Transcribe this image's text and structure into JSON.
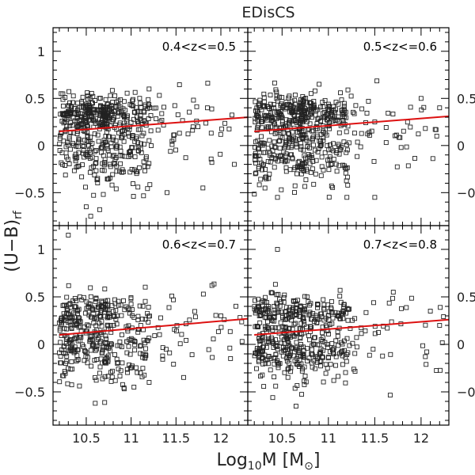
{
  "chart_data": {
    "type": "scatter",
    "title": "EDisCS",
    "xlabel": {
      "prefix": "Log",
      "sub": "10",
      "main": "M  [M",
      "sym": "⊙",
      "suffix": "]"
    },
    "ylabel": {
      "main": "(U−B)",
      "sub": "rf"
    },
    "xlim": [
      10.13,
      12.3
    ],
    "ylim": [
      -0.85,
      1.25
    ],
    "x_ticks": [
      10.5,
      11,
      11.5,
      12
    ],
    "x_tick_labels": [
      "10.5",
      "11",
      "11.5",
      "12"
    ],
    "y_ticks": [
      -0.5,
      0,
      0.5,
      1
    ],
    "y_tick_labels": [
      "−0.5",
      "0",
      "0.5",
      "1"
    ],
    "right_tick_labels_visible": [
      "0.5",
      "0",
      "−0."
    ],
    "marker": "open-square",
    "fit_color": "#dd1111",
    "panels": [
      {
        "label": "0.4<z<=0.5",
        "n_points": 560,
        "fit": {
          "x0": 10.2,
          "y0": 0.15,
          "x1": 12.3,
          "y1": 0.3
        },
        "sample_points": [
          [
            10.22,
            0.55
          ],
          [
            10.5,
            -0.65
          ],
          [
            10.55,
            -0.75
          ],
          [
            10.65,
            -0.68
          ],
          [
            11.2,
            0.6
          ],
          [
            11.85,
            0.4
          ],
          [
            11.4,
            -0.5
          ],
          [
            11.8,
            -0.45
          ],
          [
            12.15,
            -0.2
          ]
        ]
      },
      {
        "label": "0.5<z<=0.6",
        "n_points": 600,
        "fit": {
          "x0": 10.2,
          "y0": 0.15,
          "x1": 12.3,
          "y1": 0.31
        },
        "sample_points": [
          [
            10.9,
            0.65
          ],
          [
            10.45,
            -0.55
          ],
          [
            11.2,
            -0.55
          ],
          [
            11.5,
            -0.55
          ],
          [
            12.0,
            0.5
          ],
          [
            12.2,
            0.4
          ]
        ]
      },
      {
        "label": "0.6<z<=0.7",
        "n_points": 430,
        "fit": {
          "x0": 10.2,
          "y0": 0.1,
          "x1": 12.3,
          "y1": 0.27
        },
        "sample_points": [
          [
            10.3,
            1.15
          ],
          [
            10.6,
            -0.62
          ],
          [
            11.9,
            0.62
          ],
          [
            12.0,
            0.3
          ]
        ]
      },
      {
        "label": "0.7<z<=0.8",
        "n_points": 520,
        "fit": {
          "x0": 10.2,
          "y0": 0.1,
          "x1": 12.3,
          "y1": 0.26
        },
        "sample_points": [
          [
            10.45,
            1.0
          ],
          [
            10.65,
            -0.65
          ],
          [
            11.7,
            0.55
          ],
          [
            12.1,
            0.35
          ],
          [
            12.2,
            0.2
          ]
        ]
      }
    ]
  }
}
